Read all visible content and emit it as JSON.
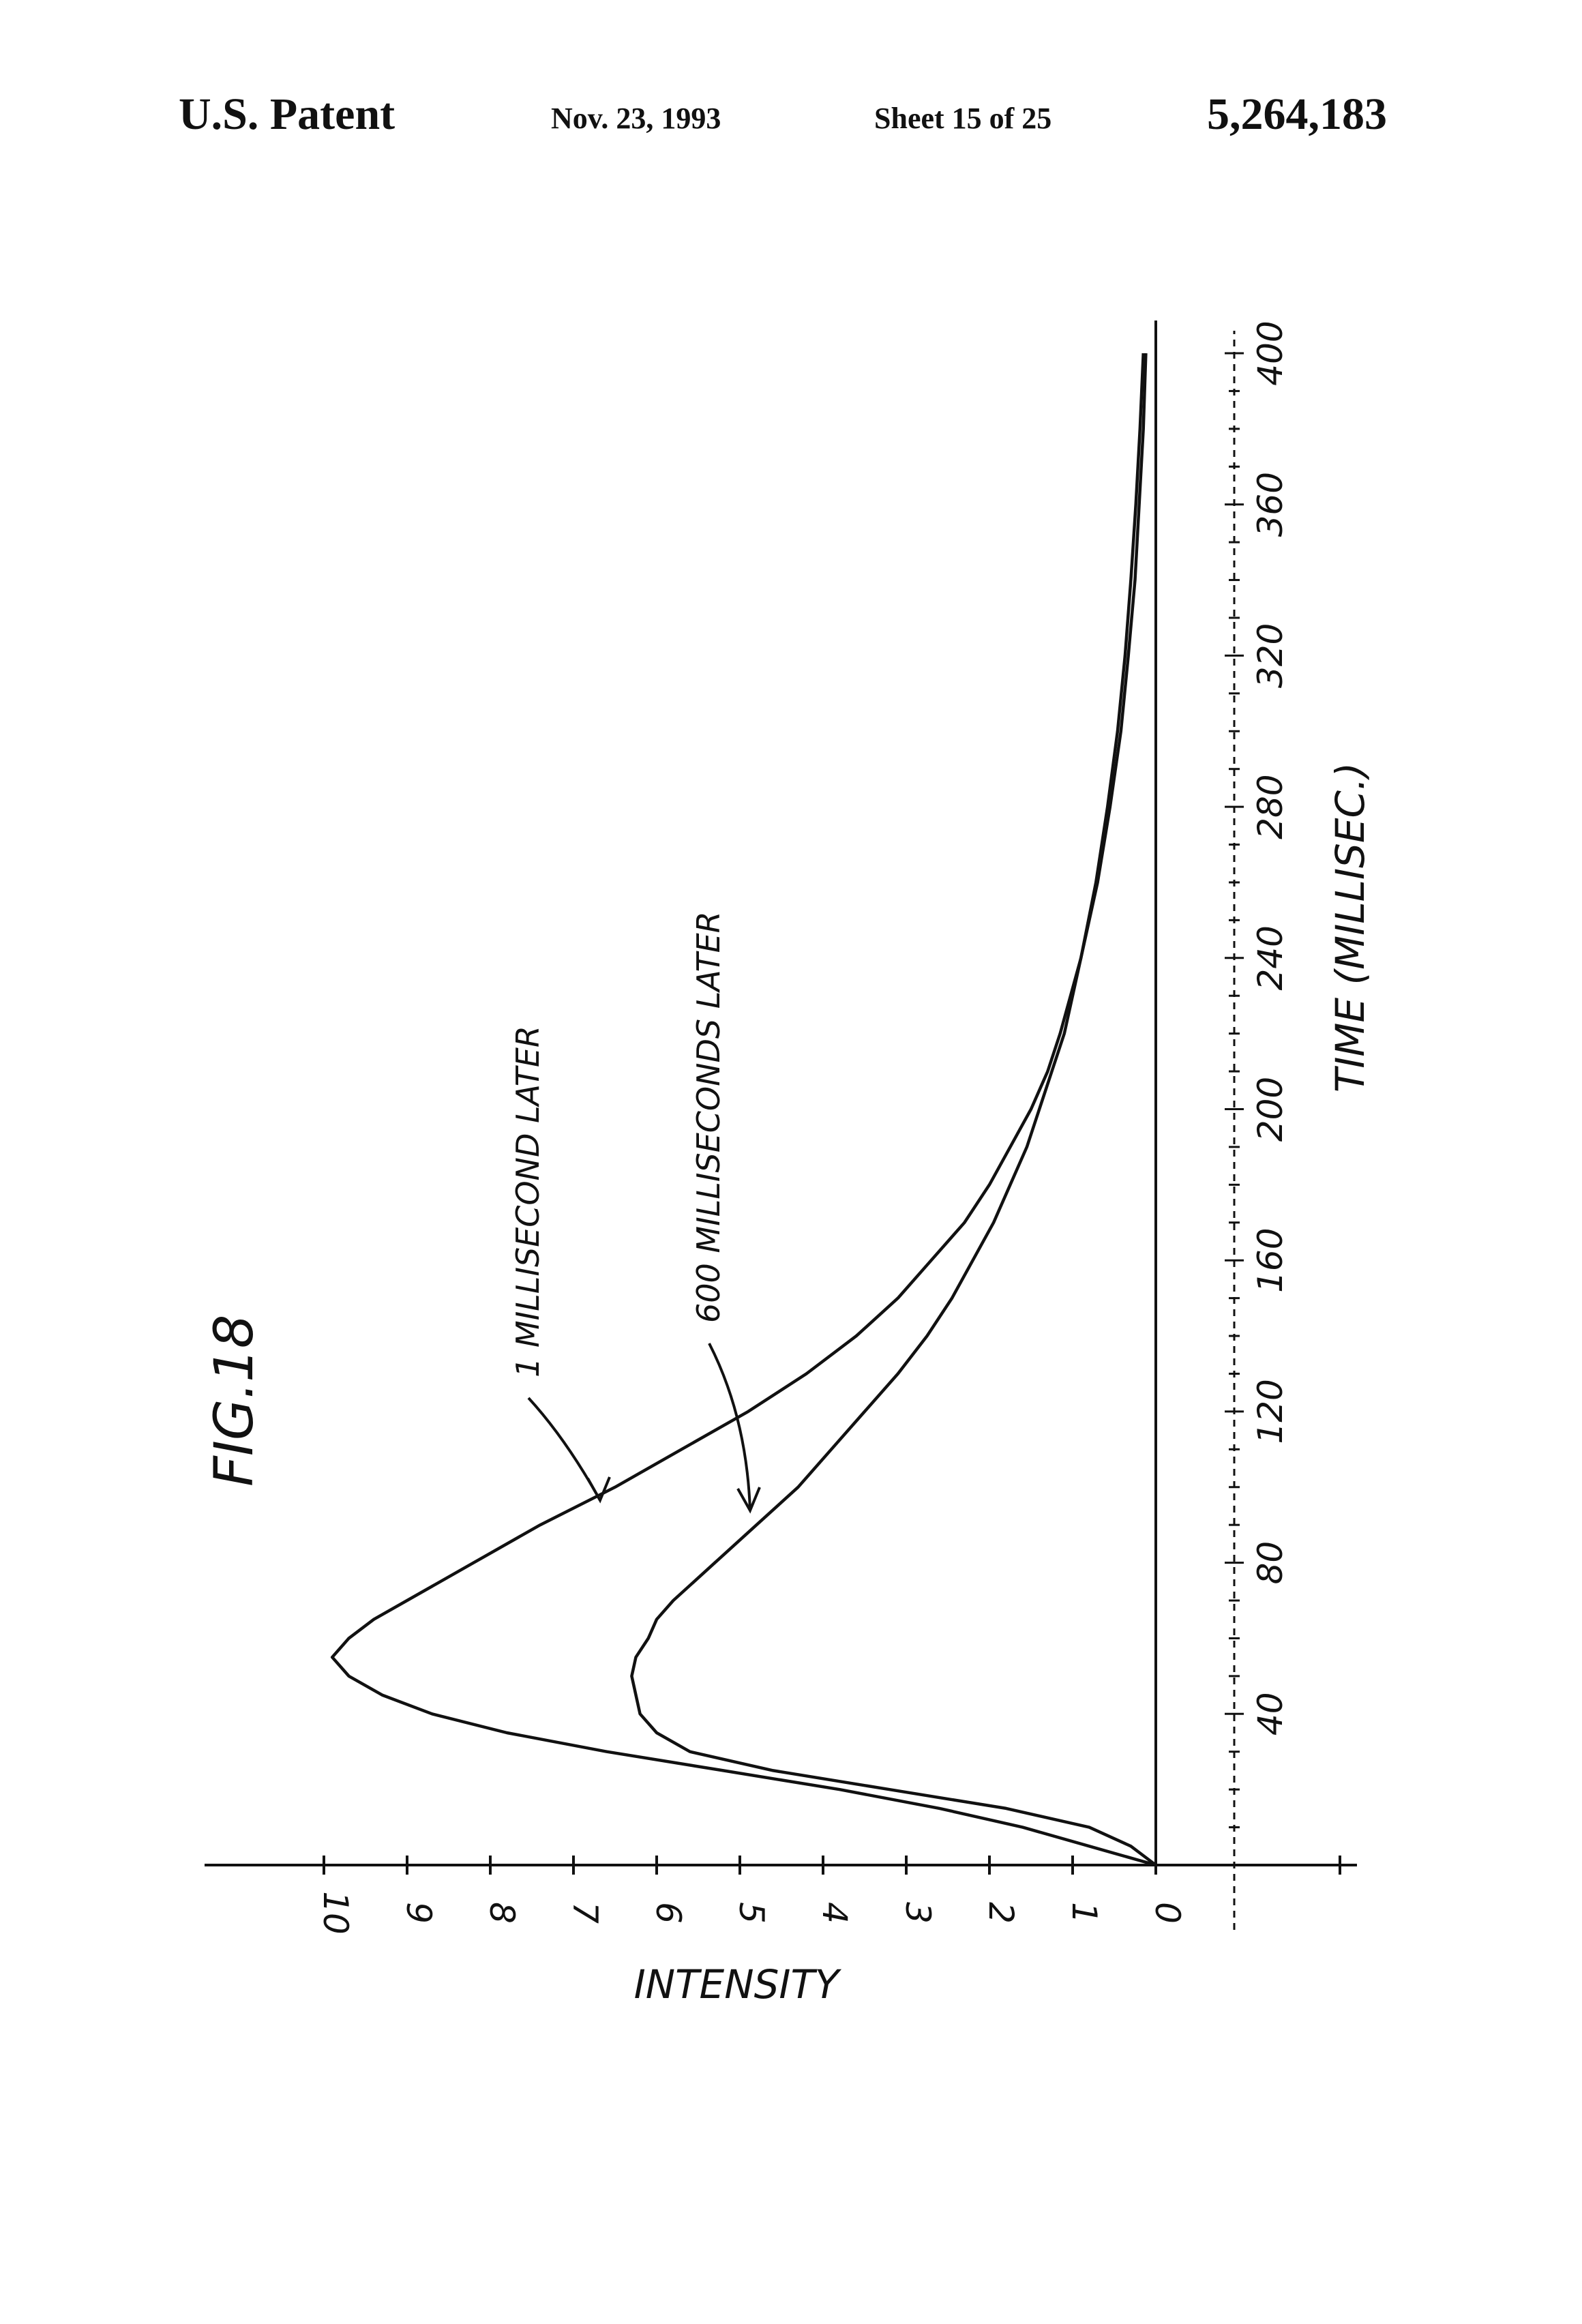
{
  "header": {
    "left": "U.S. Patent",
    "date": "Nov. 23, 1993",
    "sheet": "Sheet 15 of 25",
    "patent_number": "5,264,183"
  },
  "chart_data": {
    "type": "line",
    "title": "FIG.18",
    "xlabel": "TIME (MILLISEC.)",
    "ylabel": "INTENSITY",
    "xlim": [
      0,
      400
    ],
    "ylim": [
      0,
      10
    ],
    "x_ticks": [
      "40",
      "80",
      "120",
      "160",
      "200",
      "240",
      "280",
      "320",
      "360",
      "400"
    ],
    "y_ticks": [
      "10",
      "9",
      "8",
      "7",
      "6",
      "5",
      "4",
      "3",
      "2",
      "1",
      "0"
    ],
    "grid": false,
    "legend": "none",
    "series": [
      {
        "name": "1 MILLISECOND LATER",
        "x": [
          0,
          5,
          10,
          15,
          20,
          25,
          30,
          35,
          40,
          45,
          50,
          55,
          60,
          65,
          70,
          75,
          80,
          90,
          100,
          110,
          120,
          130,
          140,
          150,
          160,
          170,
          180,
          190,
          200,
          210,
          220,
          240,
          260,
          280,
          300,
          320,
          340,
          360,
          380,
          400
        ],
        "y": [
          0,
          0.8,
          1.6,
          2.6,
          3.8,
          5.2,
          6.6,
          7.8,
          8.7,
          9.3,
          9.7,
          9.9,
          9.7,
          9.4,
          9.0,
          8.6,
          8.2,
          7.4,
          6.5,
          5.7,
          4.9,
          4.2,
          3.6,
          3.1,
          2.7,
          2.3,
          2.0,
          1.75,
          1.5,
          1.3,
          1.15,
          0.9,
          0.7,
          0.55,
          0.42,
          0.33,
          0.25,
          0.2,
          0.15,
          0.12
        ]
      },
      {
        "name": "600 MILLISECONDS LATER",
        "x": [
          0,
          5,
          10,
          15,
          20,
          25,
          30,
          35,
          40,
          45,
          50,
          55,
          60,
          65,
          70,
          80,
          90,
          100,
          110,
          120,
          130,
          140,
          150,
          160,
          170,
          180,
          190,
          200,
          210,
          220,
          240,
          260,
          280,
          300,
          320,
          340,
          360,
          380,
          400
        ],
        "y": [
          0,
          0.3,
          0.8,
          1.8,
          3.2,
          4.6,
          5.6,
          6.0,
          6.2,
          6.25,
          6.3,
          6.25,
          6.1,
          6.0,
          5.8,
          5.3,
          4.8,
          4.3,
          3.9,
          3.5,
          3.1,
          2.75,
          2.45,
          2.2,
          1.95,
          1.75,
          1.55,
          1.4,
          1.25,
          1.1,
          0.9,
          0.72,
          0.58,
          0.46,
          0.37,
          0.3,
          0.24,
          0.19,
          0.15
        ]
      }
    ]
  }
}
